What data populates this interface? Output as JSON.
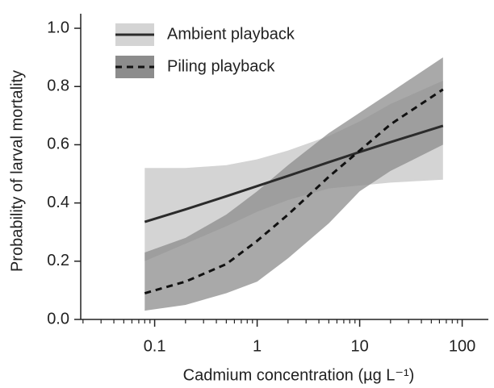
{
  "chart_data": {
    "type": "line",
    "xlabel": "Cadmium concentration (µg L⁻¹)",
    "ylabel": "Probability of larval mortality",
    "xscale": "log",
    "x": [
      0.08,
      0.2,
      0.5,
      1,
      2,
      5,
      10,
      20,
      65
    ],
    "series": [
      {
        "name": "Ambient playback",
        "color": "#2b2b2b",
        "band_color": "#d4d4d4",
        "linestyle": "solid",
        "values": [
          0.335,
          0.378,
          0.423,
          0.458,
          0.493,
          0.54,
          0.575,
          0.609,
          0.665
        ],
        "lower": [
          0.2,
          0.26,
          0.32,
          0.37,
          0.41,
          0.45,
          0.46,
          0.47,
          0.48
        ],
        "upper": [
          0.52,
          0.52,
          0.53,
          0.55,
          0.58,
          0.63,
          0.68,
          0.74,
          0.82
        ]
      },
      {
        "name": "Piling playback",
        "color": "#111111",
        "band_color": "#8c8c8c",
        "linestyle": "dashed",
        "values": [
          0.09,
          0.13,
          0.19,
          0.27,
          0.36,
          0.49,
          0.58,
          0.67,
          0.79
        ],
        "lower": [
          0.03,
          0.05,
          0.09,
          0.13,
          0.21,
          0.33,
          0.44,
          0.51,
          0.6
        ],
        "upper": [
          0.23,
          0.28,
          0.36,
          0.44,
          0.53,
          0.64,
          0.71,
          0.78,
          0.9
        ]
      }
    ],
    "xlim": [
      0.019,
      180
    ],
    "ylim": [
      0,
      1.05
    ],
    "xticks": [
      0.1,
      1,
      10,
      100
    ],
    "xminorticks": [
      0.02,
      0.03,
      0.04,
      0.05,
      0.06,
      0.07,
      0.08,
      0.09,
      0.2,
      0.3,
      0.4,
      0.5,
      0.6,
      0.7,
      0.8,
      0.9,
      2,
      3,
      4,
      5,
      6,
      7,
      8,
      9,
      20,
      30,
      40,
      50,
      60,
      70,
      80,
      90
    ],
    "yticks": [
      {
        "value": 0,
        "label": "0.0"
      },
      0.2,
      0.4,
      0.6,
      0.8,
      {
        "value": 1,
        "label": "1.0"
      }
    ],
    "legend": "upper left"
  }
}
